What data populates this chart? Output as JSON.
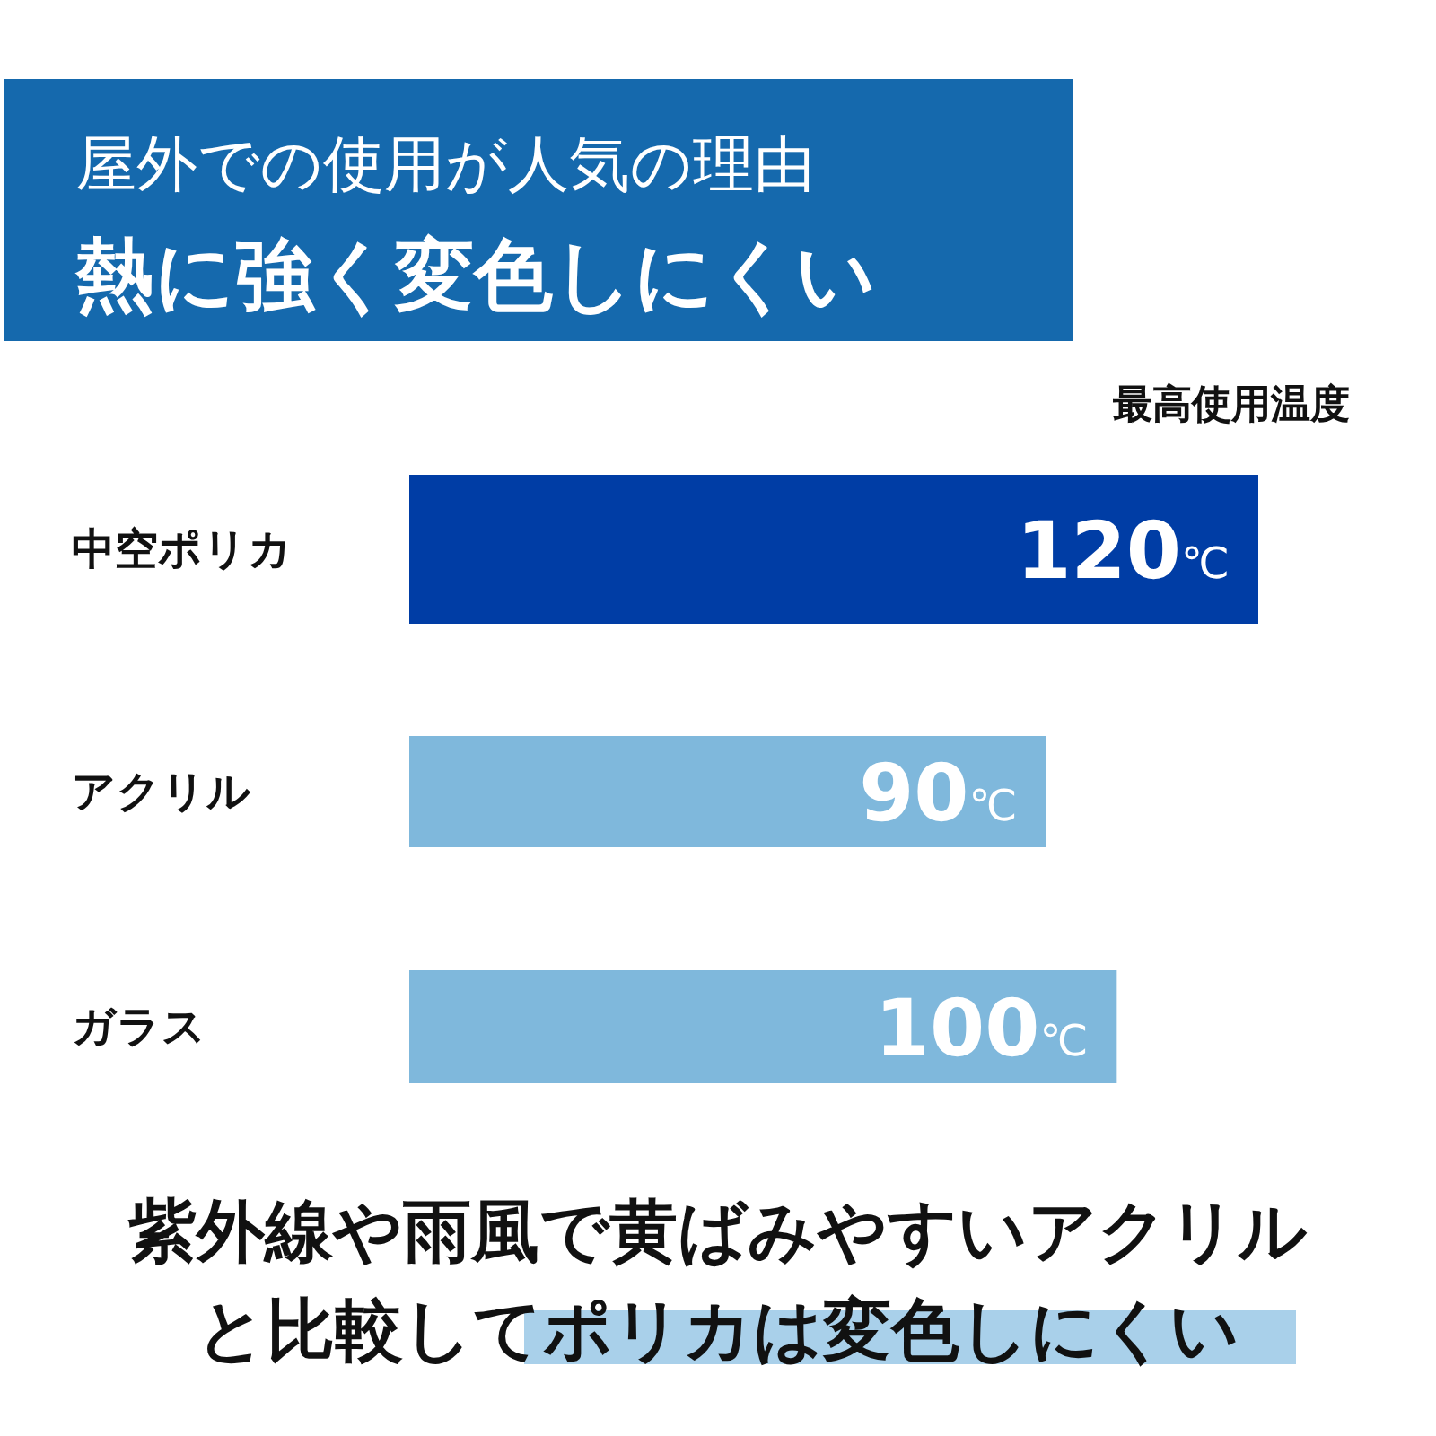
{
  "chart_data": {
    "type": "bar",
    "orientation": "horizontal",
    "title": "屋外での使用が人気の理由",
    "subtitle": "熱に強く変色しにくい",
    "xlabel": "最高使用温度",
    "categories": [
      "中空ポリカ",
      "アクリル",
      "ガラス"
    ],
    "values": [
      120,
      90,
      100
    ],
    "colors": [
      "#003da5",
      "#7fb8dc",
      "#7fb8dc"
    ],
    "value_labels": [
      "120℃",
      "90℃",
      "100℃"
    ],
    "annotations": [
      "紫外線や雨風で黄ばみやすいアクリル",
      "と比較してポリカは変色しにくい"
    ]
  }
}
